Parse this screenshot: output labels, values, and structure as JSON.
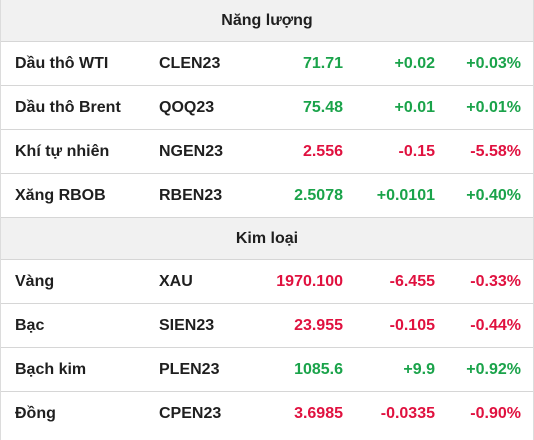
{
  "sections": [
    {
      "title": "Năng lượng",
      "rows": [
        {
          "name": "Dầu thô WTI",
          "symbol": "CLEN23",
          "price": "71.71",
          "change": "+0.02",
          "pct": "+0.03%",
          "dir": "up"
        },
        {
          "name": "Dầu thô Brent",
          "symbol": "QOQ23",
          "price": "75.48",
          "change": "+0.01",
          "pct": "+0.01%",
          "dir": "up"
        },
        {
          "name": "Khí tự nhiên",
          "symbol": "NGEN23",
          "price": "2.556",
          "change": "-0.15",
          "pct": "-5.58%",
          "dir": "down"
        },
        {
          "name": "Xăng RBOB",
          "symbol": "RBEN23",
          "price": "2.5078",
          "change": "+0.0101",
          "pct": "+0.40%",
          "dir": "up"
        }
      ]
    },
    {
      "title": "Kim loại",
      "rows": [
        {
          "name": "Vàng",
          "symbol": "XAU",
          "price": "1970.100",
          "change": "-6.455",
          "pct": "-0.33%",
          "dir": "down"
        },
        {
          "name": "Bạc",
          "symbol": "SIEN23",
          "price": "23.955",
          "change": "-0.105",
          "pct": "-0.44%",
          "dir": "down"
        },
        {
          "name": "Bạch kim",
          "symbol": "PLEN23",
          "price": "1085.6",
          "change": "+9.9",
          "pct": "+0.92%",
          "dir": "up"
        },
        {
          "name": "Đồng",
          "symbol": "CPEN23",
          "price": "3.6985",
          "change": "-0.0335",
          "pct": "-0.90%",
          "dir": "down"
        }
      ]
    }
  ],
  "colors": {
    "up": "#1aa34a",
    "down": "#e0113f",
    "header_bg": "#f1f1f1",
    "divider": "#d6d6d6"
  }
}
